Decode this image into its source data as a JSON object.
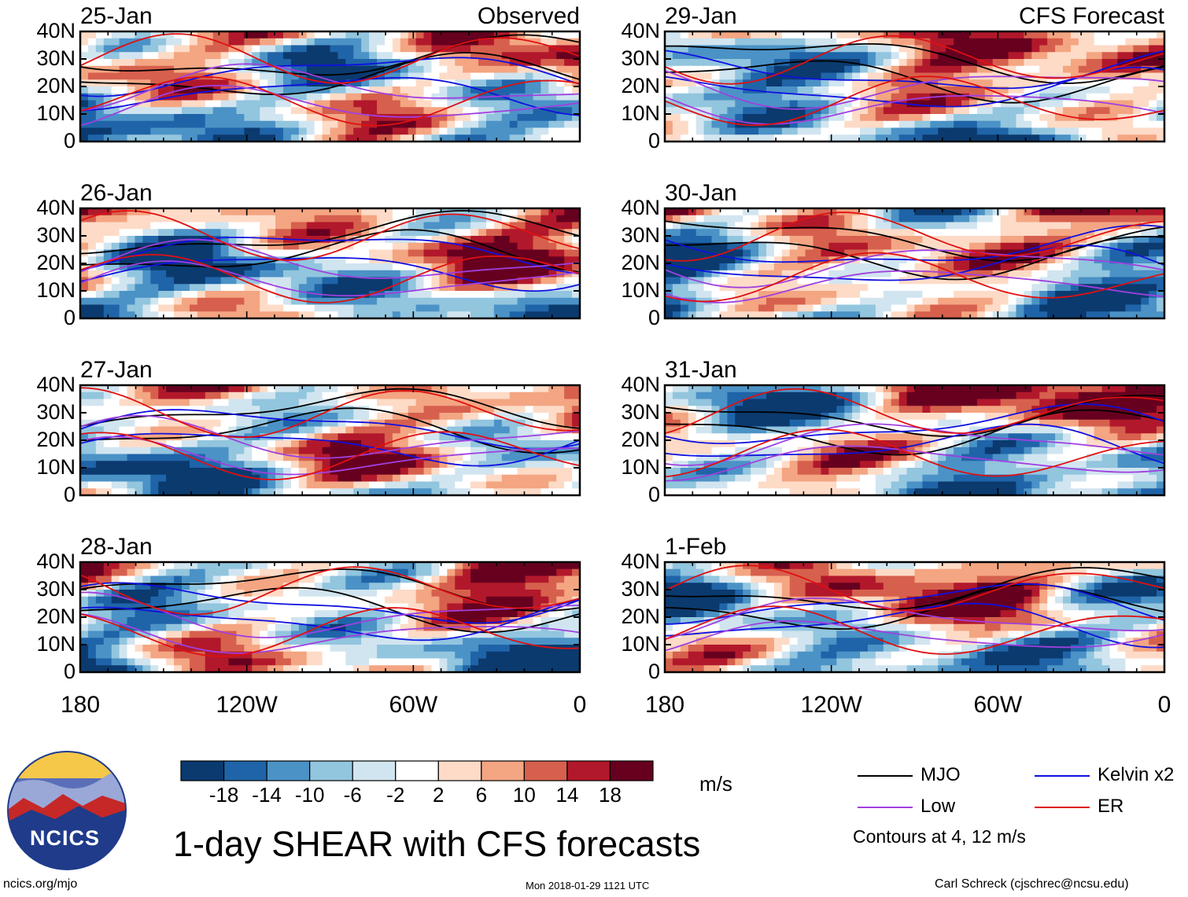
{
  "chart_data": {
    "type": "heatmap",
    "title": "1-day SHEAR with CFS forecasts",
    "units": "m/s",
    "x_axis": {
      "ticks": [
        "180",
        "120W",
        "60W",
        "0"
      ],
      "range_deg_east": [
        -180,
        0
      ]
    },
    "y_axis": {
      "ticks": [
        "40N",
        "30N",
        "20N",
        "10N",
        "0"
      ],
      "range_deg_north": [
        0,
        40
      ]
    },
    "panels": [
      {
        "date": "25-Jan",
        "label": "Observed",
        "source": "observed"
      },
      {
        "date": "26-Jan",
        "label": "",
        "source": "observed"
      },
      {
        "date": "27-Jan",
        "label": "",
        "source": "observed"
      },
      {
        "date": "28-Jan",
        "label": "",
        "source": "observed"
      },
      {
        "date": "29-Jan",
        "label": "CFS Forecast",
        "source": "forecast"
      },
      {
        "date": "30-Jan",
        "label": "",
        "source": "forecast"
      },
      {
        "date": "31-Jan",
        "label": "",
        "source": "forecast"
      },
      {
        "date": "1-Feb",
        "label": "",
        "source": "forecast"
      }
    ],
    "colorbar": {
      "labels": [
        "-18",
        "-14",
        "-10",
        "-6",
        "-2",
        "2",
        "6",
        "10",
        "14",
        "18"
      ],
      "colors": [
        "#0b3a6f",
        "#1f64a8",
        "#4b92c6",
        "#92c5de",
        "#d1e5f0",
        "#ffffff",
        "#fddbc7",
        "#f4a582",
        "#d6604d",
        "#b2182b",
        "#67001f"
      ]
    },
    "legend": [
      {
        "name": "MJO",
        "color": "#000000"
      },
      {
        "name": "Kelvin x2",
        "color": "#1010e0"
      },
      {
        "name": "Low",
        "color": "#a040e0"
      },
      {
        "name": "ER",
        "color": "#e01010"
      }
    ],
    "contour_note": "Contours at 4, 12 m/s"
  },
  "footer": {
    "logo_text": "NCICS",
    "site": "ncics.org/mjo",
    "timestamp": "Mon 2018-01-29 1121 UTC",
    "credit": "Carl Schreck (cjschrec@ncsu.edu)"
  }
}
